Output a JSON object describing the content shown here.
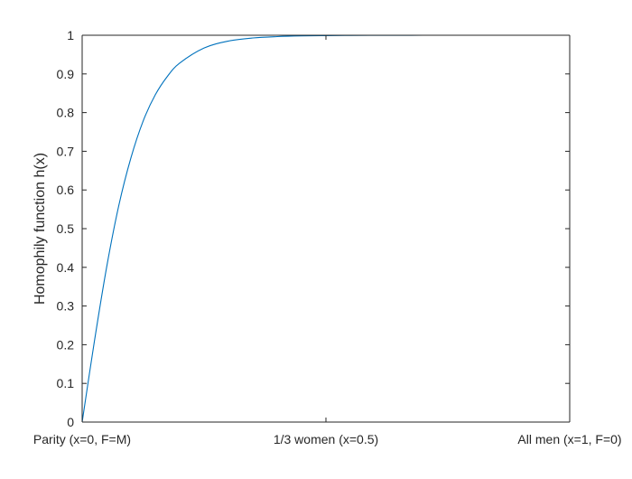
{
  "chart_data": {
    "type": "line",
    "title": "",
    "xlabel": "",
    "ylabel": "Homophily function h(x)",
    "xlim": [
      0,
      1
    ],
    "ylim": [
      0,
      1
    ],
    "grid": false,
    "box": true,
    "x_ticks": [
      {
        "value": 0,
        "label": "Parity (x=0, F=M)"
      },
      {
        "value": 0.5,
        "label": "1/3 women (x=0.5)"
      },
      {
        "value": 1,
        "label": "All men (x=1, F=0)"
      }
    ],
    "y_ticks": [
      {
        "value": 0,
        "label": "0"
      },
      {
        "value": 0.1,
        "label": "0.1"
      },
      {
        "value": 0.2,
        "label": "0.2"
      },
      {
        "value": 0.3,
        "label": "0.3"
      },
      {
        "value": 0.4,
        "label": "0.4"
      },
      {
        "value": 0.5,
        "label": "0.5"
      },
      {
        "value": 0.6,
        "label": "0.6"
      },
      {
        "value": 0.7,
        "label": "0.7"
      },
      {
        "value": 0.8,
        "label": "0.8"
      },
      {
        "value": 0.9,
        "label": "0.9"
      },
      {
        "value": 1,
        "label": "1"
      }
    ],
    "series": [
      {
        "color": "#0072BD",
        "x": [
          0,
          0.025,
          0.05,
          0.075,
          0.1,
          0.125,
          0.15,
          0.175,
          0.2,
          0.25,
          0.3,
          0.35,
          0.4,
          0.45,
          0.5,
          0.55,
          0.6,
          0.65,
          0.7,
          0.75,
          0.8,
          0.85,
          0.9,
          0.95,
          1
        ],
        "y": [
          0,
          0.208,
          0.399,
          0.559,
          0.683,
          0.778,
          0.846,
          0.894,
          0.928,
          0.967,
          0.985,
          0.993,
          0.9965,
          0.9983,
          0.9991,
          0.9996,
          0.9998,
          0.9999,
          1,
          1,
          1,
          1,
          1,
          1,
          1
        ]
      }
    ]
  }
}
